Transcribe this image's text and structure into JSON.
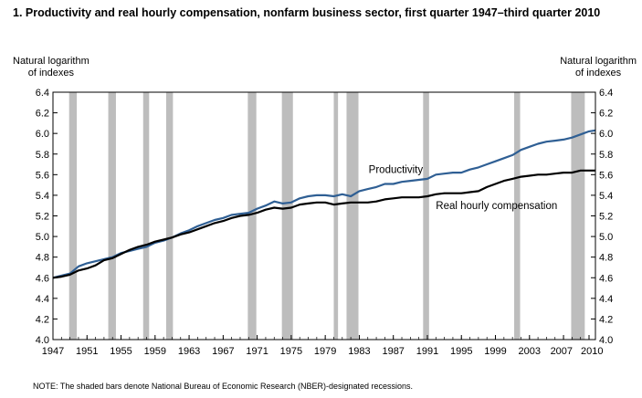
{
  "title": "1. Productivity and real hourly compensation, nonfarm business sector, first quarter 1947–third quarter 2010",
  "y_axis_label_left": [
    "Natural logarithm",
    "of indexes"
  ],
  "y_axis_label_right": [
    "Natural logarithm",
    "of indexes"
  ],
  "note": "NOTE: The shaded bars denote National Bureau of Economic Research (NBER)-designated recessions.",
  "colors": {
    "productivity": "#2f5f94",
    "compensation": "#000000",
    "recession": "#bdbdbd"
  },
  "chart_data": {
    "type": "line",
    "title": "1. Productivity and real hourly compensation, nonfarm business sector, first quarter 1947–third quarter 2010",
    "ylabel": "Natural logarithm of indexes",
    "xlim": [
      1947,
      2010.75
    ],
    "ylim": [
      4.0,
      6.4
    ],
    "yticks": [
      "4.0",
      "4.2",
      "4.4",
      "4.6",
      "4.8",
      "5.0",
      "5.2",
      "5.4",
      "5.6",
      "5.8",
      "6.0",
      "6.2",
      "6.4"
    ],
    "xticks": [
      "1947",
      "1951",
      "1955",
      "1959",
      "1963",
      "1967",
      "1971",
      "1975",
      "1979",
      "1983",
      "1987",
      "1991",
      "1995",
      "1999",
      "2003",
      "2007",
      "2010"
    ],
    "grid": false,
    "recessions": [
      [
        1948.9,
        1949.8
      ],
      [
        1953.5,
        1954.4
      ],
      [
        1957.6,
        1958.3
      ],
      [
        1960.3,
        1961.1
      ],
      [
        1969.9,
        1970.9
      ],
      [
        1973.9,
        1975.2
      ],
      [
        1980.0,
        1980.5
      ],
      [
        1981.5,
        1982.9
      ],
      [
        1990.5,
        1991.2
      ],
      [
        2001.2,
        2001.9
      ],
      [
        2007.9,
        2009.5
      ]
    ],
    "annotations": [
      {
        "text": "Productivity",
        "x": 1984.1,
        "y": 5.65
      },
      {
        "text": "Real hourly compensation",
        "x": 1992.0,
        "y": 5.3
      }
    ],
    "series": [
      {
        "name": "Productivity",
        "color": "#2f5f94",
        "points": [
          [
            1947,
            4.6
          ],
          [
            1948,
            4.62
          ],
          [
            1949,
            4.64
          ],
          [
            1950,
            4.71
          ],
          [
            1951,
            4.74
          ],
          [
            1952,
            4.76
          ],
          [
            1953,
            4.78
          ],
          [
            1954,
            4.8
          ],
          [
            1955,
            4.84
          ],
          [
            1956,
            4.86
          ],
          [
            1957,
            4.88
          ],
          [
            1958,
            4.9
          ],
          [
            1959,
            4.94
          ],
          [
            1960,
            4.96
          ],
          [
            1961,
            4.99
          ],
          [
            1962,
            5.03
          ],
          [
            1963,
            5.06
          ],
          [
            1964,
            5.1
          ],
          [
            1965,
            5.13
          ],
          [
            1966,
            5.16
          ],
          [
            1967,
            5.18
          ],
          [
            1968,
            5.21
          ],
          [
            1969,
            5.22
          ],
          [
            1970,
            5.23
          ],
          [
            1971,
            5.27
          ],
          [
            1972,
            5.3
          ],
          [
            1973,
            5.34
          ],
          [
            1974,
            5.32
          ],
          [
            1975,
            5.33
          ],
          [
            1976,
            5.37
          ],
          [
            1977,
            5.39
          ],
          [
            1978,
            5.4
          ],
          [
            1979,
            5.4
          ],
          [
            1980,
            5.39
          ],
          [
            1981,
            5.41
          ],
          [
            1982,
            5.39
          ],
          [
            1983,
            5.44
          ],
          [
            1984,
            5.46
          ],
          [
            1985,
            5.48
          ],
          [
            1986,
            5.51
          ],
          [
            1987,
            5.51
          ],
          [
            1988,
            5.53
          ],
          [
            1989,
            5.54
          ],
          [
            1990,
            5.55
          ],
          [
            1991,
            5.56
          ],
          [
            1992,
            5.6
          ],
          [
            1993,
            5.61
          ],
          [
            1994,
            5.62
          ],
          [
            1995,
            5.62
          ],
          [
            1996,
            5.65
          ],
          [
            1997,
            5.67
          ],
          [
            1998,
            5.7
          ],
          [
            1999,
            5.73
          ],
          [
            2000,
            5.76
          ],
          [
            2001,
            5.79
          ],
          [
            2002,
            5.84
          ],
          [
            2003,
            5.87
          ],
          [
            2004,
            5.9
          ],
          [
            2005,
            5.92
          ],
          [
            2006,
            5.93
          ],
          [
            2007,
            5.94
          ],
          [
            2008,
            5.96
          ],
          [
            2009,
            5.99
          ],
          [
            2010,
            6.02
          ],
          [
            2010.75,
            6.03
          ]
        ]
      },
      {
        "name": "Real hourly compensation",
        "color": "#000000",
        "points": [
          [
            1947,
            4.6
          ],
          [
            1948,
            4.61
          ],
          [
            1949,
            4.63
          ],
          [
            1950,
            4.67
          ],
          [
            1951,
            4.69
          ],
          [
            1952,
            4.72
          ],
          [
            1953,
            4.77
          ],
          [
            1954,
            4.79
          ],
          [
            1955,
            4.83
          ],
          [
            1956,
            4.87
          ],
          [
            1957,
            4.9
          ],
          [
            1958,
            4.92
          ],
          [
            1959,
            4.95
          ],
          [
            1960,
            4.97
          ],
          [
            1961,
            4.99
          ],
          [
            1962,
            5.02
          ],
          [
            1963,
            5.04
          ],
          [
            1964,
            5.07
          ],
          [
            1965,
            5.1
          ],
          [
            1966,
            5.13
          ],
          [
            1967,
            5.15
          ],
          [
            1968,
            5.18
          ],
          [
            1969,
            5.2
          ],
          [
            1970,
            5.21
          ],
          [
            1971,
            5.23
          ],
          [
            1972,
            5.26
          ],
          [
            1973,
            5.28
          ],
          [
            1974,
            5.27
          ],
          [
            1975,
            5.28
          ],
          [
            1976,
            5.31
          ],
          [
            1977,
            5.32
          ],
          [
            1978,
            5.33
          ],
          [
            1979,
            5.33
          ],
          [
            1980,
            5.31
          ],
          [
            1981,
            5.32
          ],
          [
            1982,
            5.33
          ],
          [
            1983,
            5.33
          ],
          [
            1984,
            5.33
          ],
          [
            1985,
            5.34
          ],
          [
            1986,
            5.36
          ],
          [
            1987,
            5.37
          ],
          [
            1988,
            5.38
          ],
          [
            1989,
            5.38
          ],
          [
            1990,
            5.38
          ],
          [
            1991,
            5.39
          ],
          [
            1992,
            5.41
          ],
          [
            1993,
            5.42
          ],
          [
            1994,
            5.42
          ],
          [
            1995,
            5.42
          ],
          [
            1996,
            5.43
          ],
          [
            1997,
            5.44
          ],
          [
            1998,
            5.48
          ],
          [
            1999,
            5.51
          ],
          [
            2000,
            5.54
          ],
          [
            2001,
            5.56
          ],
          [
            2002,
            5.58
          ],
          [
            2003,
            5.59
          ],
          [
            2004,
            5.6
          ],
          [
            2005,
            5.6
          ],
          [
            2006,
            5.61
          ],
          [
            2007,
            5.62
          ],
          [
            2008,
            5.62
          ],
          [
            2009,
            5.64
          ],
          [
            2010,
            5.64
          ],
          [
            2010.75,
            5.64
          ]
        ]
      }
    ]
  }
}
